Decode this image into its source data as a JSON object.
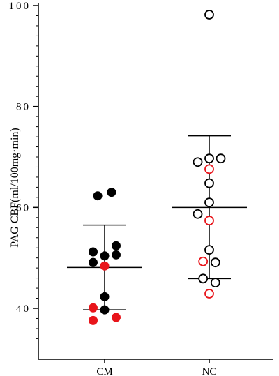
{
  "chart_data": {
    "type": "scatter",
    "title": "",
    "ylabel": "PAG CBF(ml/100mg·min)",
    "xlabel": "",
    "ylim": [
      33,
      100
    ],
    "yticks": [
      40,
      60,
      80,
      100
    ],
    "grid": false,
    "categories": [
      "CM",
      "NC"
    ],
    "groups": [
      {
        "category": "CM",
        "marker": "filled",
        "mean": 48.1,
        "sd_upper": 56.5,
        "sd_lower": 39.7,
        "points": [
          {
            "offset": -0.45,
            "value": 62.3,
            "color": "#000000"
          },
          {
            "offset": 0.45,
            "value": 63.0,
            "color": "#000000"
          },
          {
            "offset": -0.75,
            "value": 51.2,
            "color": "#000000"
          },
          {
            "offset": 0.75,
            "value": 52.4,
            "color": "#000000"
          },
          {
            "offset": 0.0,
            "value": 50.4,
            "color": "#000000"
          },
          {
            "offset": -0.75,
            "value": 49.1,
            "color": "#000000"
          },
          {
            "offset": 0.75,
            "value": 50.6,
            "color": "#000000"
          },
          {
            "offset": 0.0,
            "value": 48.4,
            "color": "#e8151b"
          },
          {
            "offset": 0.0,
            "value": 42.3,
            "color": "#000000"
          },
          {
            "offset": -0.75,
            "value": 40.1,
            "color": "#e8151b"
          },
          {
            "offset": 0.0,
            "value": 39.7,
            "color": "#000000"
          },
          {
            "offset": -0.75,
            "value": 37.6,
            "color": "#e8151b"
          },
          {
            "offset": 0.75,
            "value": 38.2,
            "color": "#e8151b"
          }
        ]
      },
      {
        "category": "NC",
        "marker": "open",
        "mean": 60.0,
        "sd_upper": 74.2,
        "sd_lower": 45.9,
        "points": [
          {
            "offset": 0.0,
            "value": 98.2,
            "color": "#000000"
          },
          {
            "offset": -0.75,
            "value": 69.0,
            "color": "#000000"
          },
          {
            "offset": 0.0,
            "value": 69.7,
            "color": "#000000"
          },
          {
            "offset": 0.75,
            "value": 69.7,
            "color": "#000000"
          },
          {
            "offset": 0.0,
            "value": 67.6,
            "color": "#e8151b"
          },
          {
            "offset": 0.0,
            "value": 64.8,
            "color": "#000000"
          },
          {
            "offset": 0.0,
            "value": 61.0,
            "color": "#000000"
          },
          {
            "offset": -0.75,
            "value": 58.7,
            "color": "#000000"
          },
          {
            "offset": 0.0,
            "value": 57.4,
            "color": "#e8151b"
          },
          {
            "offset": 0.0,
            "value": 51.6,
            "color": "#000000"
          },
          {
            "offset": -0.4,
            "value": 49.3,
            "color": "#e8151b"
          },
          {
            "offset": 0.4,
            "value": 49.1,
            "color": "#000000"
          },
          {
            "offset": -0.4,
            "value": 45.9,
            "color": "#000000"
          },
          {
            "offset": 0.4,
            "value": 45.1,
            "color": "#000000"
          },
          {
            "offset": 0.0,
            "value": 42.9,
            "color": "#e8151b"
          }
        ]
      }
    ]
  }
}
